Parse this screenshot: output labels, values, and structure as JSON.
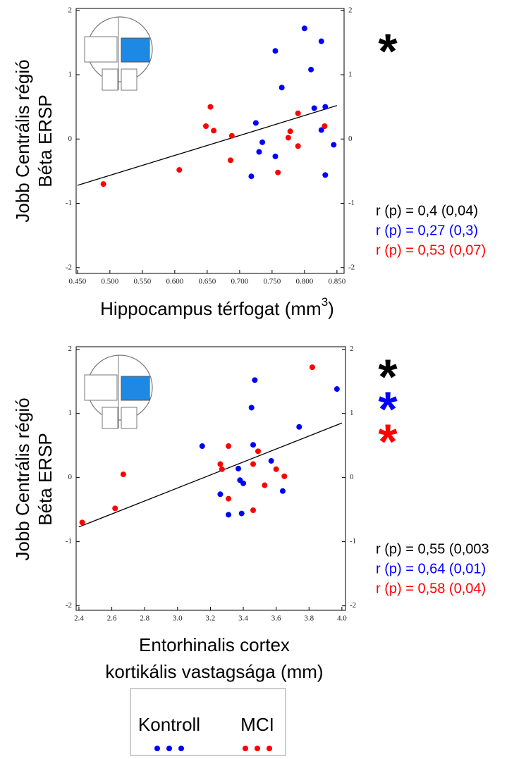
{
  "charts": [
    {
      "chart_data": {
        "type": "scatter",
        "ylabel": [
          "Jobb Centrális régió",
          "Béta ERSP"
        ],
        "xlabel": [
          "Hippocampus térfogat (mm",
          "3",
          ")"
        ],
        "xlim": [
          0.448,
          0.861
        ],
        "ylim": [
          -2.09,
          2.03
        ],
        "xticks": [
          {
            "value": 0.45,
            "label": "0.450"
          },
          {
            "value": 0.5,
            "label": "0.500"
          },
          {
            "value": 0.55,
            "label": "0.550"
          },
          {
            "value": 0.6,
            "label": "0.600"
          },
          {
            "value": 0.65,
            "label": "0.650"
          },
          {
            "value": 0.7,
            "label": "0.700"
          },
          {
            "value": 0.75,
            "label": "0.750"
          },
          {
            "value": 0.8,
            "label": "0.800"
          },
          {
            "value": 0.85,
            "label": "0.850"
          }
        ],
        "yticks": [
          -2,
          -1,
          0,
          1,
          2
        ],
        "series": [
          {
            "color": "#0000ff",
            "x": [
              0.8,
              0.826,
              0.755,
              0.81,
              0.765,
              0.815,
              0.832,
              0.725,
              0.826,
              0.735,
              0.845,
              0.73,
              0.755,
              0.718,
              0.832
            ],
            "values": [
              1.72,
              1.52,
              1.37,
              1.08,
              0.8,
              0.48,
              0.5,
              0.25,
              0.14,
              -0.05,
              -0.09,
              -0.2,
              -0.27,
              -0.58,
              -0.56
            ]
          },
          {
            "color": "#ff0000",
            "x": [
              0.49,
              0.607,
              0.648,
              0.655,
              0.66,
              0.688,
              0.686,
              0.759,
              0.775,
              0.778,
              0.79,
              0.79,
              0.831
            ],
            "values": [
              -0.7,
              -0.48,
              0.2,
              0.5,
              0.13,
              0.05,
              -0.33,
              -0.52,
              0.02,
              0.12,
              0.4,
              -0.11,
              0.2
            ]
          }
        ],
        "fit": {
          "color": "#000000",
          "x": [
            0.45,
            0.85
          ],
          "y": [
            -0.72,
            0.52
          ]
        },
        "asterisks": [
          {
            "text": "*",
            "color": "#000000"
          }
        ],
        "stats": [
          {
            "text": "r (p) = 0,4 (0,04)",
            "color": "#000000"
          },
          {
            "text": "r (p) = 0,27 (0,3)",
            "color": "#0000ff"
          },
          {
            "text": "r (p) = 0,53 (0,07)",
            "color": "#ff0000"
          }
        ]
      }
    },
    {
      "chart_data": {
        "type": "scatter",
        "ylabel": [
          "Jobb Centrális régió",
          "Béta ERSP"
        ],
        "xlabel": [
          "Entorhinalis cortex",
          "kortikális vastagsága (mm)"
        ],
        "xlim": [
          2.383,
          4.022
        ],
        "ylim": [
          -2.07,
          2.04
        ],
        "xticks": [
          2.4,
          2.6,
          2.8,
          {
            "value": 3,
            "label": "3.0"
          },
          3.2,
          3.4,
          3.6,
          3.8,
          {
            "value": 4,
            "label": "4.0"
          }
        ],
        "yticks": [
          -2,
          -1,
          0,
          1,
          2
        ],
        "series": [
          {
            "color": "#0000ff",
            "x": [
              3.47,
              3.97,
              3.45,
              3.74,
              3.15,
              3.46,
              3.57,
              3.37,
              3.38,
              3.4,
              3.64,
              3.26,
              3.31,
              3.39
            ],
            "values": [
              1.52,
              1.38,
              1.09,
              0.79,
              0.49,
              0.51,
              0.26,
              0.14,
              -0.04,
              -0.09,
              -0.21,
              -0.26,
              -0.58,
              -0.56
            ]
          },
          {
            "color": "#ff0000",
            "x": [
              3.82,
              2.42,
              2.62,
              2.67,
              3.31,
              3.49,
              3.26,
              3.27,
              3.46,
              3.6,
              3.65,
              3.53,
              3.31,
              3.46
            ],
            "values": [
              1.72,
              -0.7,
              -0.48,
              0.05,
              0.49,
              0.41,
              0.21,
              0.13,
              0.21,
              0.13,
              0.02,
              -0.12,
              -0.33,
              -0.51
            ]
          }
        ],
        "fit": {
          "color": "#000000",
          "x": [
            2.4,
            4.0
          ],
          "y": [
            -0.77,
            0.85
          ]
        },
        "asterisks": [
          {
            "text": "*",
            "color": "#000000"
          },
          {
            "text": "*",
            "color": "#0000ff"
          },
          {
            "text": "*",
            "color": "#ff0000"
          }
        ],
        "stats": [
          {
            "text": "r (p) = 0,55 (0,003",
            "color": "#000000"
          },
          {
            "text": "r (p) = 0,64 (0,01)",
            "color": "#0000ff"
          },
          {
            "text": "r (p) = 0,58 (0,04)",
            "color": "#ff0000"
          }
        ]
      }
    }
  ],
  "legend": [
    {
      "name": "Kontroll",
      "color": "#0000ff"
    },
    {
      "name": "MCI",
      "color": "#ff0000"
    }
  ]
}
